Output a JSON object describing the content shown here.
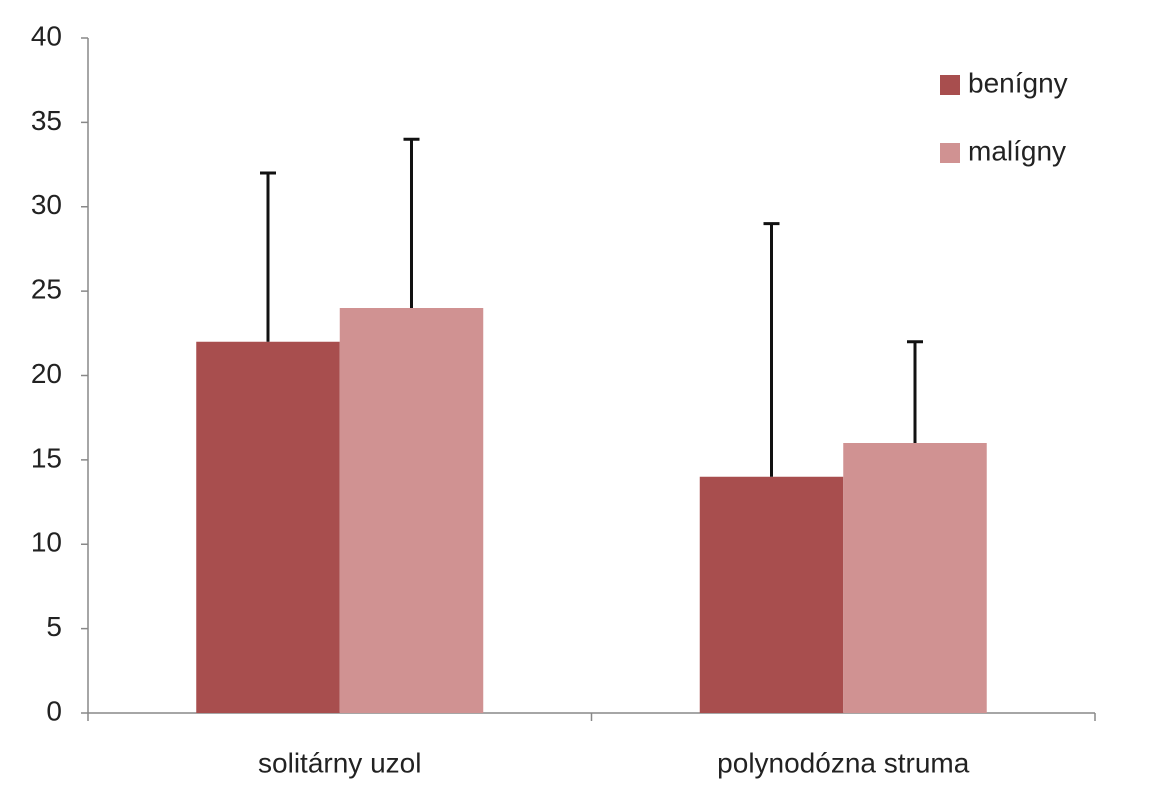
{
  "chart_data": {
    "type": "bar",
    "categories": [
      "solitárny uzol",
      "polynodózna struma"
    ],
    "series": [
      {
        "name": "benígny",
        "color": "#a84e4e",
        "values": [
          22,
          14
        ],
        "errors": [
          10,
          15
        ]
      },
      {
        "name": "malígny",
        "color": "#d09292",
        "values": [
          24,
          16
        ],
        "errors": [
          10,
          6
        ]
      }
    ],
    "ylim": [
      0,
      40
    ],
    "yticks": [
      0,
      5,
      10,
      15,
      20,
      25,
      30,
      35,
      40
    ],
    "grid": false,
    "legend": "upper-right"
  }
}
